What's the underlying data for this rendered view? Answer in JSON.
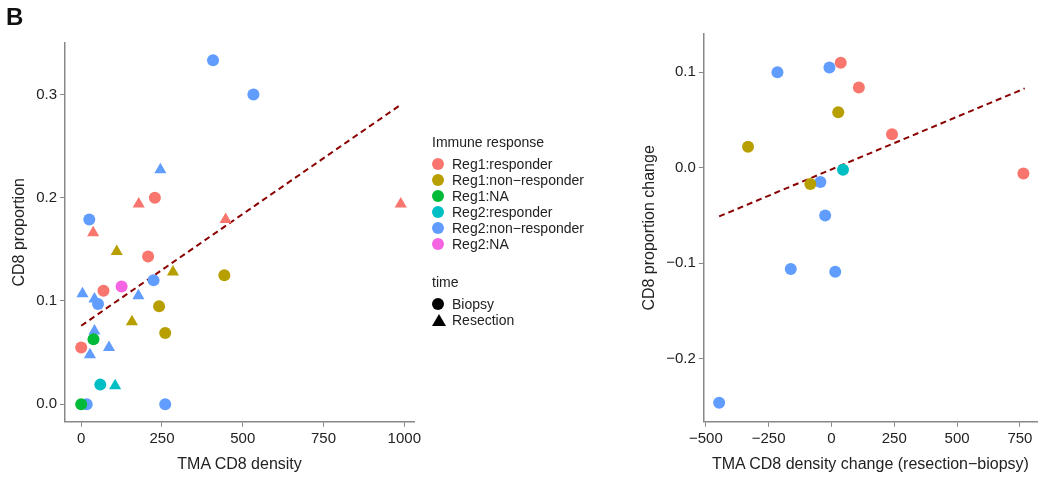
{
  "chart_data": [
    {
      "type": "scatter",
      "title": "B",
      "xlabel": "TMA CD8 density",
      "ylabel": "CD8 proportion",
      "legend_title": "Immune response",
      "annotations": [
        "time"
      ],
      "legend": "right",
      "xlim": [
        -50,
        1030
      ],
      "xticks": [
        0,
        250,
        500,
        750,
        1000
      ],
      "ylim": [
        -0.017,
        0.35
      ],
      "yticks": [
        {
          "value": 0,
          "label": "0.0"
        },
        {
          "value": 0.1,
          "label": "0.1"
        },
        {
          "value": 0.2,
          "label": "0.2"
        },
        {
          "value": 0.3,
          "label": "0.3"
        }
      ],
      "series": [
        {
          "name": "Reg1:responder",
          "color": "#f8766d",
          "marker": "circle",
          "x": [
            228,
            207,
            69,
            0
          ],
          "values": [
            0.2,
            0.143,
            0.11,
            0.055
          ]
        },
        {
          "color": "#f8766d",
          "marker": "triangle",
          "x": [
            178,
            989,
            447,
            37
          ],
          "values": [
            0.194,
            0.194,
            0.179,
            0.166
          ]
        },
        {
          "name": "Reg1:non−responder",
          "color": "#b79f00",
          "marker": "circle",
          "x": [
            443,
            241,
            260
          ],
          "values": [
            0.125,
            0.095,
            0.069
          ]
        },
        {
          "color": "#b79f00",
          "marker": "triangle",
          "x": [
            110,
            284,
            157
          ],
          "values": [
            0.148,
            0.128,
            0.08
          ]
        },
        {
          "name": "Reg1:NA",
          "color": "#00ba38",
          "marker": "circle",
          "x": [
            38,
            0
          ],
          "values": [
            0.063,
            0
          ]
        },
        {
          "name": "Reg2:responder",
          "color": "#00bfc4",
          "marker": "circle",
          "x": [
            59
          ],
          "values": [
            0.019
          ]
        },
        {
          "color": "#00bfc4",
          "marker": "triangle",
          "x": [
            105
          ],
          "values": [
            0.018
          ]
        },
        {
          "name": "Reg2:non−responder",
          "color": "#619cff",
          "marker": "circle",
          "x": [
            408,
            533,
            25,
            224,
            52,
            17,
            260
          ],
          "values": [
            0.333,
            0.3,
            0.179,
            0.12,
            0.097,
            0,
            0
          ]
        },
        {
          "color": "#619cff",
          "marker": "triangle",
          "x": [
            245,
            177,
            4,
            41,
            41,
            86,
            27
          ],
          "values": [
            0.227,
            0.105,
            0.107,
            0.102,
            0.071,
            0.055,
            0.048
          ]
        },
        {
          "name": "Reg2:NA",
          "color": "#f564e3",
          "marker": "circle",
          "x": [
            125
          ],
          "values": [
            0.114
          ]
        },
        {
          "type": "line",
          "color": "#8b0000",
          "marker": "none",
          "line_style": "dashed",
          "x": [
            0,
            989
          ],
          "values": [
            0.076,
            0.29
          ]
        },
        {
          "name": "Biopsy",
          "color": "#000000",
          "marker": "circle"
        },
        {
          "name": "Resection",
          "color": "#000000",
          "marker": "triangle"
        }
      ]
    },
    {
      "type": "scatter",
      "xlabel": "TMA CD8 density change (resection−biopsy)",
      "ylabel": "CD8 proportion change",
      "xlim": [
        -508,
        818
      ],
      "xticks": [
        {
          "value": -500,
          "label": "−500"
        },
        {
          "value": -250,
          "label": "−250"
        },
        0,
        250,
        500,
        750
      ],
      "ylim": [
        -0.266,
        0.14
      ],
      "yticks": [
        {
          "value": -0.2,
          "label": "−0.2"
        },
        {
          "value": -0.1,
          "label": "−0.1"
        },
        {
          "value": 0,
          "label": "0.0"
        },
        {
          "value": 0.1,
          "label": "0.1"
        }
      ],
      "series": [
        {
          "color": "#f8766d",
          "marker": "circle",
          "x": [
            37,
            109,
            241,
            764
          ],
          "values": [
            0.11,
            0.084,
            0.035,
            -0.006
          ]
        },
        {
          "color": "#b79f00",
          "marker": "circle",
          "x": [
            -332,
            -84,
            27
          ],
          "values": [
            0.022,
            -0.017,
            0.058
          ]
        },
        {
          "color": "#00bfc4",
          "marker": "circle",
          "x": [
            46
          ],
          "values": [
            -0.002
          ]
        },
        {
          "color": "#619cff",
          "marker": "circle",
          "x": [
            -447,
            -215,
            -162,
            -44,
            -25,
            -8,
            15
          ],
          "values": [
            -0.246,
            0.1,
            -0.106,
            -0.015,
            -0.05,
            0.105,
            -0.109
          ]
        },
        {
          "type": "line",
          "color": "#8b0000",
          "marker": "none",
          "line_style": "dashed",
          "x": [
            -447,
            769
          ],
          "values": [
            -0.051,
            0.083
          ]
        }
      ]
    }
  ]
}
